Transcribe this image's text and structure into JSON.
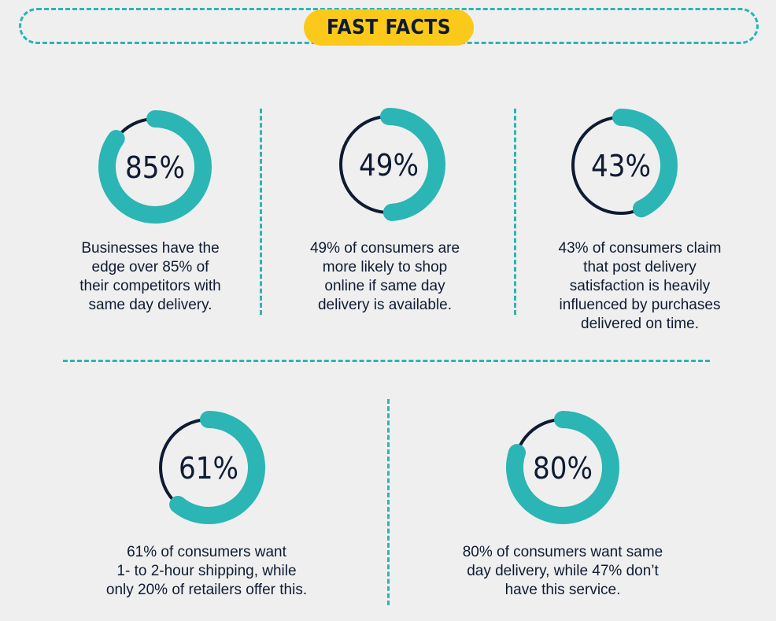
{
  "banner": {
    "title": "FAST FACTS"
  },
  "colors": {
    "accent": "#2bb5b4",
    "ring_track": "#0f1b33",
    "banner": "#fbc91a",
    "text": "#0f1b33",
    "background": "#efefef"
  },
  "chart_data": {
    "type": "donut",
    "items": [
      {
        "value": 85,
        "label": "85%",
        "text": [
          "Businesses have the",
          "edge over 85% of",
          "their competitors with",
          "same day delivery."
        ]
      },
      {
        "value": 49,
        "label": "49%",
        "text": [
          "49% of consumers are",
          "more likely to shop",
          "online if same day",
          "delivery is available."
        ]
      },
      {
        "value": 43,
        "label": "43%",
        "text": [
          "43% of consumers claim",
          "that post delivery",
          "satisfaction is heavily",
          "influenced by purchases",
          "delivered on time."
        ]
      },
      {
        "value": 61,
        "label": "61%",
        "text": [
          "61% of consumers want",
          "1- to 2-hour shipping, while",
          "only 20% of retailers offer this."
        ]
      },
      {
        "value": 80,
        "label": "80%",
        "text": [
          "80% of consumers want same",
          "day delivery, while 47% don’t",
          "have this service."
        ]
      }
    ]
  }
}
